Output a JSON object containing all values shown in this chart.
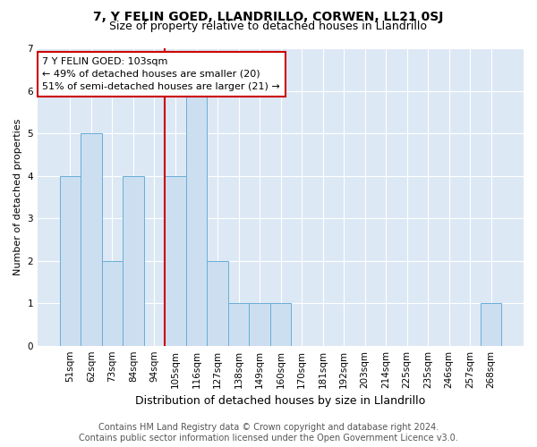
{
  "title": "7, Y FELIN GOED, LLANDRILLO, CORWEN, LL21 0SJ",
  "subtitle": "Size of property relative to detached houses in Llandrillo",
  "xlabel": "Distribution of detached houses by size in Llandrillo",
  "ylabel": "Number of detached properties",
  "categories": [
    "51sqm",
    "62sqm",
    "73sqm",
    "84sqm",
    "94sqm",
    "105sqm",
    "116sqm",
    "127sqm",
    "138sqm",
    "149sqm",
    "160sqm",
    "170sqm",
    "181sqm",
    "192sqm",
    "203sqm",
    "214sqm",
    "225sqm",
    "235sqm",
    "246sqm",
    "257sqm",
    "268sqm"
  ],
  "values": [
    4,
    5,
    2,
    4,
    0,
    4,
    6,
    2,
    1,
    1,
    1,
    0,
    0,
    0,
    0,
    0,
    0,
    0,
    0,
    0,
    1
  ],
  "bar_color": "#ccdff0",
  "bar_edge_color": "#6aaed6",
  "property_line_index": 5,
  "annotation_text": "7 Y FELIN GOED: 103sqm\n← 49% of detached houses are smaller (20)\n51% of semi-detached houses are larger (21) →",
  "annotation_box_color": "#ffffff",
  "annotation_box_edge": "#cc0000",
  "red_line_color": "#cc0000",
  "footer": "Contains HM Land Registry data © Crown copyright and database right 2024.\nContains public sector information licensed under the Open Government Licence v3.0.",
  "ylim": [
    0,
    7
  ],
  "yticks": [
    0,
    1,
    2,
    3,
    4,
    5,
    6,
    7
  ],
  "plot_bg_color": "#dde8f5",
  "fig_bg_color": "#ffffff",
  "title_fontsize": 10,
  "subtitle_fontsize": 9,
  "xlabel_fontsize": 9,
  "ylabel_fontsize": 8,
  "annot_fontsize": 8,
  "tick_fontsize": 7.5,
  "footer_fontsize": 7
}
